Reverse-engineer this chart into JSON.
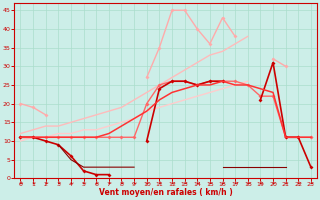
{
  "x": [
    0,
    1,
    2,
    3,
    4,
    5,
    6,
    7,
    8,
    9,
    10,
    11,
    12,
    13,
    14,
    15,
    16,
    17,
    18,
    19,
    20,
    21,
    22,
    23
  ],
  "lines": [
    {
      "y": [
        20,
        19,
        17,
        null,
        null,
        null,
        null,
        null,
        null,
        null,
        27,
        35,
        45,
        45,
        40,
        36,
        43,
        38,
        null,
        null,
        null,
        null,
        null,
        null
      ],
      "color": "#ffaaaa",
      "lw": 1.0,
      "marker": true
    },
    {
      "y": [
        null,
        null,
        null,
        null,
        null,
        null,
        null,
        null,
        null,
        null,
        null,
        null,
        null,
        null,
        null,
        null,
        null,
        null,
        null,
        null,
        32,
        30,
        null,
        11
      ],
      "color": "#ffaaaa",
      "lw": 1.0,
      "marker": true
    },
    {
      "y": [
        12,
        13,
        14,
        14,
        15,
        16,
        17,
        18,
        19,
        21,
        23,
        25,
        27,
        29,
        31,
        33,
        34,
        36,
        38,
        null,
        null,
        null,
        null,
        null
      ],
      "color": "#ffbbbb",
      "lw": 1.0,
      "marker": false
    },
    {
      "y": [
        10,
        11,
        11,
        12,
        12,
        13,
        13,
        14,
        15,
        16,
        18,
        19,
        20,
        21,
        22,
        23,
        24,
        25,
        26,
        null,
        null,
        null,
        null,
        null
      ],
      "color": "#ffcccc",
      "lw": 1.0,
      "marker": false
    },
    {
      "y": [
        11,
        11,
        11,
        11,
        11,
        11,
        11,
        11,
        11,
        11,
        20,
        25,
        26,
        26,
        25,
        26,
        26,
        26,
        25,
        22,
        22,
        11,
        11,
        11
      ],
      "color": "#ff6666",
      "lw": 1.0,
      "marker": true
    },
    {
      "y": [
        11,
        11,
        10,
        9,
        6,
        2,
        1,
        1,
        null,
        null,
        10,
        24,
        26,
        26,
        25,
        26,
        26,
        null,
        null,
        null,
        null,
        null,
        null,
        null
      ],
      "color": "#cc0000",
      "lw": 1.2,
      "marker": true
    },
    {
      "y": [
        null,
        null,
        null,
        null,
        null,
        null,
        null,
        null,
        null,
        null,
        null,
        null,
        null,
        null,
        null,
        null,
        null,
        null,
        null,
        21,
        31,
        11,
        11,
        3
      ],
      "color": "#cc0000",
      "lw": 1.2,
      "marker": true
    },
    {
      "y": [
        null,
        null,
        null,
        9,
        5,
        3,
        3,
        3,
        3,
        3,
        null,
        null,
        null,
        null,
        null,
        null,
        3,
        3,
        3,
        3,
        3,
        3,
        null,
        null
      ],
      "color": "#880000",
      "lw": 0.8,
      "marker": false
    },
    {
      "y": [
        11,
        11,
        11,
        11,
        11,
        11,
        11,
        12,
        14,
        16,
        18,
        21,
        23,
        24,
        25,
        25,
        26,
        25,
        25,
        24,
        23,
        11,
        11,
        11
      ],
      "color": "#ff3333",
      "lw": 1.1,
      "marker": false
    }
  ],
  "xlabel": "Vent moyen/en rafales ( km/h )",
  "xlim": [
    -0.5,
    23.5
  ],
  "ylim": [
    0,
    47
  ],
  "yticks": [
    0,
    5,
    10,
    15,
    20,
    25,
    30,
    35,
    40,
    45
  ],
  "xticks": [
    0,
    1,
    2,
    3,
    4,
    5,
    6,
    7,
    8,
    9,
    10,
    11,
    12,
    13,
    14,
    15,
    16,
    17,
    18,
    19,
    20,
    21,
    22,
    23
  ],
  "bg_color": "#cceee8",
  "grid_color": "#aaddcc",
  "axis_color": "#cc0000",
  "tick_color": "#cc0000",
  "label_color": "#cc0000"
}
